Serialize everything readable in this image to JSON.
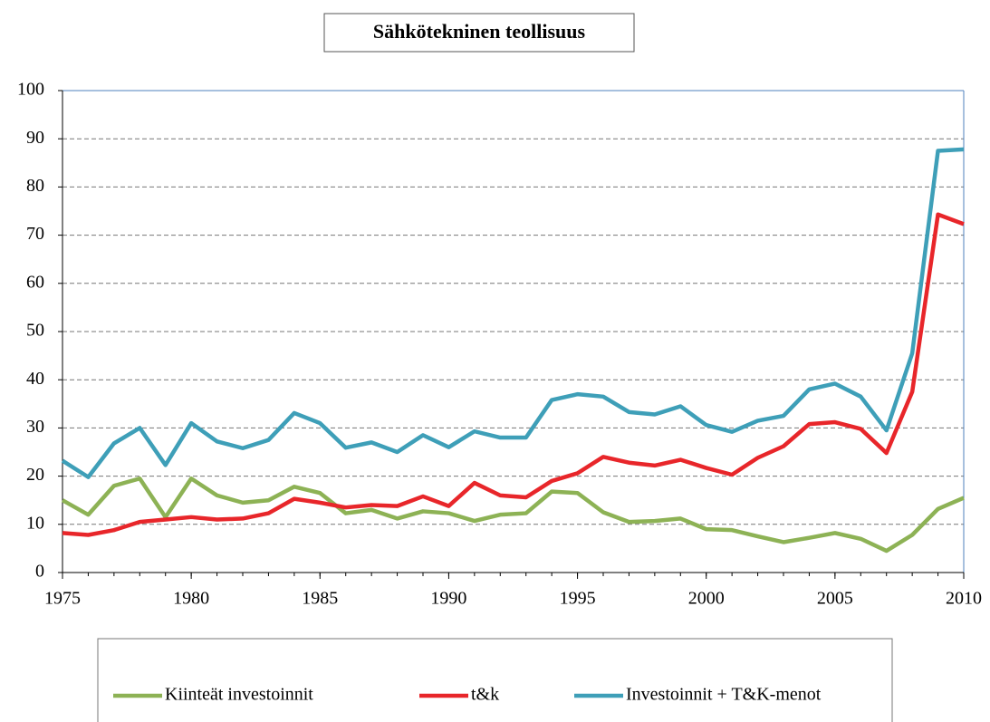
{
  "chart_data": {
    "type": "line",
    "title": "Sähkötekninen teollisuus",
    "x": [
      1975,
      1976,
      1977,
      1978,
      1979,
      1980,
      1981,
      1982,
      1983,
      1984,
      1985,
      1986,
      1987,
      1988,
      1989,
      1990,
      1991,
      1992,
      1993,
      1994,
      1995,
      1996,
      1997,
      1998,
      1999,
      2000,
      2001,
      2002,
      2003,
      2004,
      2005,
      2006,
      2007,
      2008,
      2009,
      2010
    ],
    "series": [
      {
        "name": "Kiinteät investoinnit",
        "color": "#8db255",
        "values": [
          15,
          12,
          18,
          19.5,
          11.5,
          19.5,
          16,
          14.5,
          15,
          17.8,
          16.5,
          12.3,
          13,
          11.2,
          12.7,
          12.3,
          10.7,
          12,
          12.3,
          16.8,
          16.5,
          12.5,
          10.5,
          10.7,
          11.2,
          9,
          8.8,
          7.5,
          6.3,
          7.2,
          8.2,
          7,
          4.5,
          7.8,
          13.2,
          15.5
        ]
      },
      {
        "name": "t&k",
        "color": "#e8262a",
        "values": [
          8.2,
          7.8,
          8.8,
          10.5,
          11,
          11.5,
          11,
          11.2,
          12.3,
          15.3,
          14.5,
          13.5,
          14,
          13.8,
          15.8,
          13.8,
          18.6,
          16,
          15.6,
          19,
          20.6,
          24,
          22.8,
          22.2,
          23.4,
          21.7,
          20.3,
          23.8,
          26.2,
          30.8,
          31.2,
          29.8,
          24.8,
          37.5,
          74.3,
          72.3
        ]
      },
      {
        "name": "Investoinnit + T&K-menot",
        "color": "#3e9fb8",
        "values": [
          23.2,
          19.8,
          26.8,
          30,
          22.3,
          31,
          27.2,
          25.8,
          27.5,
          33.1,
          31,
          25.9,
          27,
          25,
          28.5,
          26,
          29.3,
          28,
          28,
          35.8,
          37,
          36.5,
          33.3,
          32.8,
          34.5,
          30.6,
          29.2,
          31.5,
          32.5,
          38,
          39.2,
          36.5,
          29.5,
          45.5,
          87.5,
          87.8
        ]
      }
    ],
    "xlim": [
      1975,
      2010
    ],
    "xticks": [
      1975,
      1980,
      1985,
      1990,
      1995,
      2000,
      2005,
      2010
    ],
    "ylim": [
      0,
      100
    ],
    "yticks": [
      0,
      10,
      20,
      30,
      40,
      50,
      60,
      70,
      80,
      90,
      100
    ],
    "grid": true,
    "legend": "bottom"
  }
}
